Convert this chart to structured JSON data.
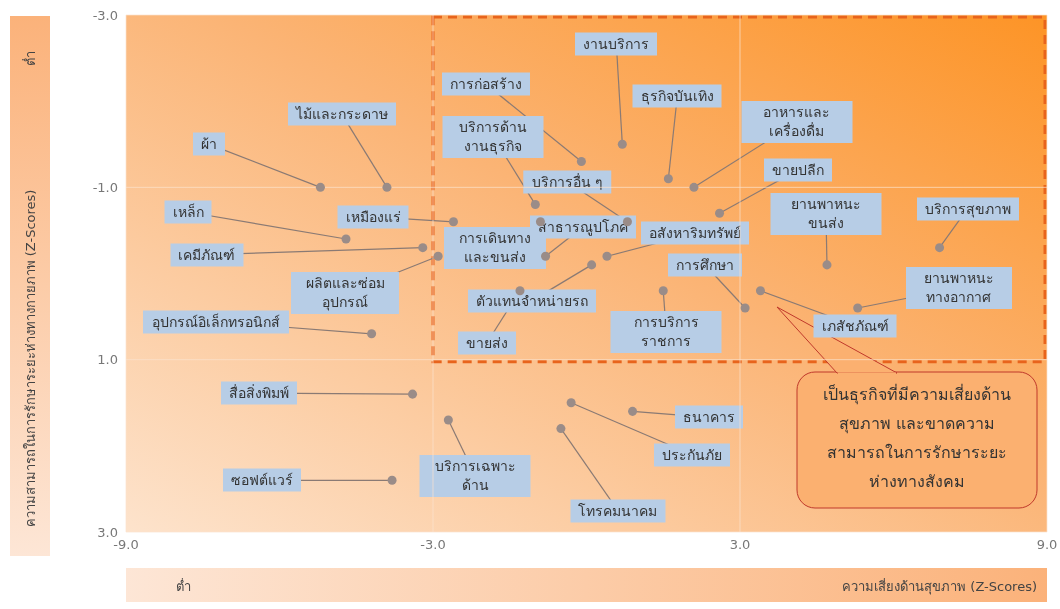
{
  "chart_data": {
    "type": "scatter",
    "xlabel": "ความเสี่ยงด้านสุขภาพ (Z-Scores)",
    "ylabel": "ความสามารถในการรักษาระยะห่างทางกายภาพ (Z-Scores)",
    "annotations": [
      "ต่ำ",
      "ต่ำ",
      "เป็นธุรกิจที่มีความเสี่ยงด้านสุขภาพ และขาดความสามารถในการรักษาระยะห่างทางสังคม"
    ],
    "xlim": [
      -9,
      9
    ],
    "xticks": [
      {
        "value": -9,
        "label": "-9.0"
      },
      {
        "value": -3,
        "label": "-3.0"
      },
      {
        "value": 3,
        "label": "3.0"
      },
      {
        "value": 9,
        "label": "9.0"
      }
    ],
    "ylim": [
      3,
      -3
    ],
    "yticks": [
      {
        "value": -3,
        "label": "-3.0"
      },
      {
        "value": -1,
        "label": "-1.0"
      },
      {
        "value": 1,
        "label": "1.0"
      },
      {
        "value": 3,
        "label": "3.0"
      }
    ],
    "grid": true,
    "legend": false,
    "marker": "circle",
    "series": [
      {
        "name": "ผ้า",
        "color": "#9a8c88",
        "x": [
          -5.2
        ],
        "values": [
          -1.0
        ]
      },
      {
        "name": "ไม้และกระดาษ",
        "color": "#9a8c88",
        "x": [
          -3.9
        ],
        "values": [
          -1.0
        ]
      },
      {
        "name": "เหล็ก",
        "color": "#9a8c88",
        "x": [
          -4.7
        ],
        "values": [
          -0.4
        ]
      },
      {
        "name": "เหมืองแร่",
        "color": "#9a8c88",
        "x": [
          -2.6
        ],
        "values": [
          -0.6
        ]
      },
      {
        "name": "เคมีภัณฑ์",
        "color": "#9a8c88",
        "x": [
          -3.2
        ],
        "values": [
          -0.3
        ]
      },
      {
        "name": "ผลิตและซ่อมอุปกรณ์",
        "color": "#9a8c88",
        "x": [
          -2.9
        ],
        "values": [
          -0.2
        ]
      },
      {
        "name": "อุปกรณ์อิเล็กทรอนิกส์",
        "color": "#9a8c88",
        "x": [
          -4.2
        ],
        "values": [
          0.7
        ]
      },
      {
        "name": "สื่อสิ่งพิมพ์",
        "color": "#9a8c88",
        "x": [
          -3.4
        ],
        "values": [
          1.4
        ]
      },
      {
        "name": "ซอฟต์แวร์",
        "color": "#9a8c88",
        "x": [
          -3.8
        ],
        "values": [
          2.4
        ]
      },
      {
        "name": "บริการเฉพาะด้าน",
        "color": "#9a8c88",
        "x": [
          -2.7
        ],
        "values": [
          1.7
        ]
      },
      {
        "name": "โทรคมนาคม",
        "color": "#9a8c88",
        "x": [
          -0.5
        ],
        "values": [
          1.8
        ]
      },
      {
        "name": "ประกันภัย",
        "color": "#9a8c88",
        "x": [
          -0.3
        ],
        "values": [
          1.5
        ]
      },
      {
        "name": "ธนาคาร",
        "color": "#9a8c88",
        "x": [
          0.9
        ],
        "values": [
          1.6
        ]
      },
      {
        "name": "การก่อสร้าง",
        "color": "#9a8c88",
        "x": [
          -0.1
        ],
        "values": [
          -1.3
        ]
      },
      {
        "name": "งานบริการ",
        "color": "#9a8c88",
        "x": [
          0.7
        ],
        "values": [
          -1.5
        ]
      },
      {
        "name": "ธุรกิจบันเทิง",
        "color": "#9a8c88",
        "x": [
          1.6
        ],
        "values": [
          -1.1
        ]
      },
      {
        "name": "อาหารและเครื่องดื่ม",
        "color": "#9a8c88",
        "x": [
          2.1
        ],
        "values": [
          -1.0
        ]
      },
      {
        "name": "ขายปลีก",
        "color": "#9a8c88",
        "x": [
          2.6
        ],
        "values": [
          -0.7
        ]
      },
      {
        "name": "บริการด้านงานธุรกิจ",
        "color": "#9a8c88",
        "x": [
          -1.0
        ],
        "values": [
          -0.8
        ]
      },
      {
        "name": "บริการอื่น ๆ",
        "color": "#9a8c88",
        "x": [
          0.8
        ],
        "values": [
          -0.6
        ]
      },
      {
        "name": "การเดินทางและขนส่ง",
        "color": "#9a8c88",
        "x": [
          -0.9
        ],
        "values": [
          -0.6
        ]
      },
      {
        "name": "สาธารณูปโภค",
        "color": "#9a8c88",
        "x": [
          -0.8
        ],
        "values": [
          -0.2
        ]
      },
      {
        "name": "อสังหาริมทรัพย์",
        "color": "#9a8c88",
        "x": [
          0.4
        ],
        "values": [
          -0.2
        ]
      },
      {
        "name": "ตัวแทนจำหน่ายรถ",
        "color": "#9a8c88",
        "x": [
          0.1
        ],
        "values": [
          -0.1
        ]
      },
      {
        "name": "ขายส่ง",
        "color": "#9a8c88",
        "x": [
          -1.3
        ],
        "values": [
          0.2
        ]
      },
      {
        "name": "การศึกษา",
        "color": "#9a8c88",
        "x": [
          3.1
        ],
        "values": [
          0.4
        ]
      },
      {
        "name": "การบริการราชการ",
        "color": "#9a8c88",
        "x": [
          1.5
        ],
        "values": [
          0.2
        ]
      },
      {
        "name": "เภสัชภัณฑ์",
        "color": "#9a8c88",
        "x": [
          3.4
        ],
        "values": [
          0.2
        ]
      },
      {
        "name": "ยานพาหนะขนส่ง",
        "color": "#9a8c88",
        "x": [
          4.7
        ],
        "values": [
          -0.1
        ]
      },
      {
        "name": "บริการสุขภาพ",
        "color": "#9a8c88",
        "x": [
          6.9
        ],
        "values": [
          -0.3
        ]
      },
      {
        "name": "ยานพาหนะทางอากาศ",
        "color": "#9a8c88",
        "x": [
          5.3
        ],
        "values": [
          0.4
        ]
      }
    ]
  }
}
